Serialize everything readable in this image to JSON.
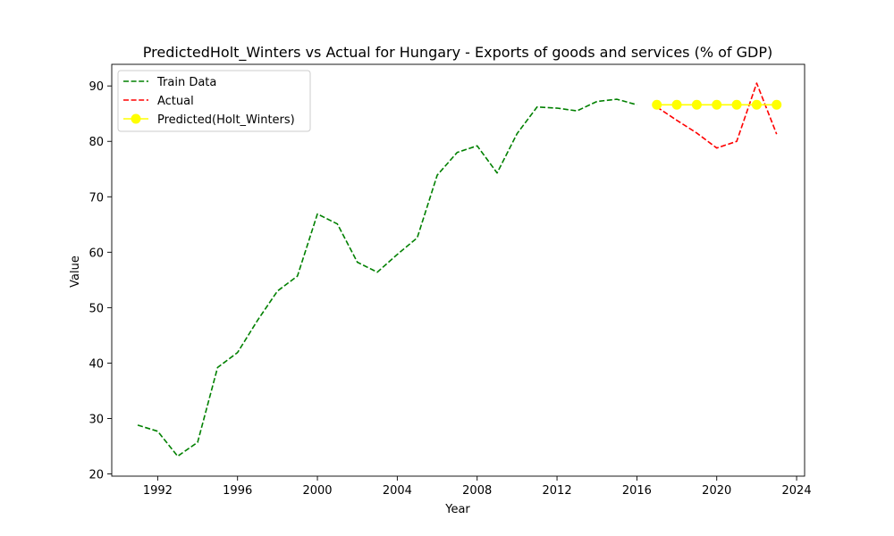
{
  "chart_data": {
    "type": "line",
    "title": "PredictedHolt_Winters vs Actual for Hungary - Exports of goods and services (% of GDP)",
    "xlabel": "Year",
    "ylabel": "Value",
    "xlim": [
      1989.7,
      2024.4
    ],
    "ylim": [
      19.6,
      93.9
    ],
    "xticks": [
      1992,
      1996,
      2000,
      2004,
      2008,
      2012,
      2016,
      2020,
      2024
    ],
    "yticks": [
      20,
      30,
      40,
      50,
      60,
      70,
      80,
      90
    ],
    "grid": false,
    "legend_position": "top-left",
    "series": [
      {
        "name": "Train Data",
        "style": "dashed",
        "color": "#008000",
        "x": [
          1991,
          1992,
          1993,
          1994,
          1995,
          1996,
          1997,
          1998,
          1999,
          2000,
          2001,
          2002,
          2003,
          2004,
          2005,
          2006,
          2007,
          2008,
          2009,
          2010,
          2011,
          2012,
          2013,
          2014,
          2015,
          2016
        ],
        "values": [
          28.8,
          27.7,
          23.2,
          25.7,
          39.2,
          41.9,
          47.7,
          53.0,
          55.7,
          66.9,
          65.1,
          58.2,
          56.4,
          59.6,
          62.6,
          73.9,
          78.0,
          79.2,
          74.3,
          81.4,
          86.2,
          86.0,
          85.5,
          87.2,
          87.6,
          86.6
        ]
      },
      {
        "name": "Actual",
        "style": "dashed",
        "color": "#ff0000",
        "x": [
          2017,
          2018,
          2019,
          2020,
          2021,
          2022,
          2023
        ],
        "values": [
          86.2,
          83.8,
          81.5,
          78.8,
          80.0,
          90.5,
          81.3
        ]
      },
      {
        "name": "Predicted(Holt_Winters)",
        "style": "solid-markers",
        "color": "#ffff00",
        "x": [
          2017,
          2018,
          2019,
          2020,
          2021,
          2022,
          2023
        ],
        "values": [
          86.6,
          86.6,
          86.6,
          86.6,
          86.6,
          86.6,
          86.6
        ]
      }
    ]
  }
}
